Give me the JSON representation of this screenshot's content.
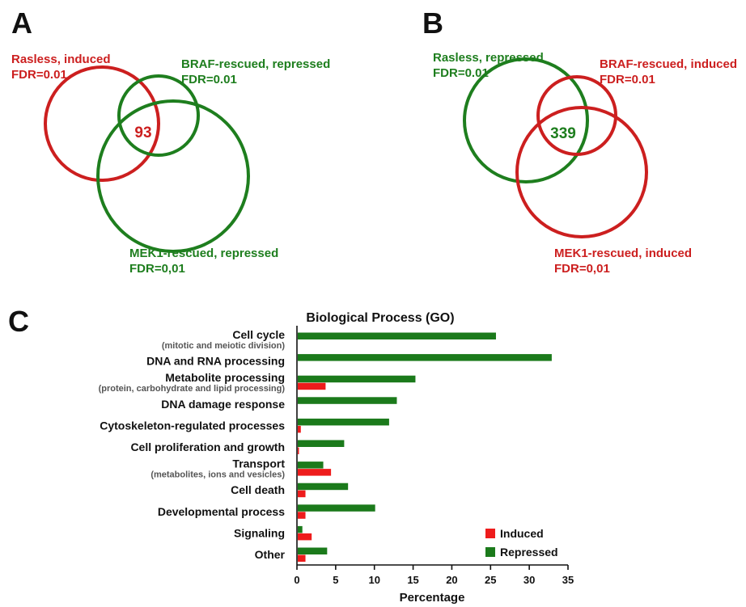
{
  "colors": {
    "red": "#cc1f1f",
    "green": "#1e7e1e",
    "bar_red": "#ee1c1c",
    "bar_green": "#1b7a1b"
  },
  "panel_a": {
    "letter": "A",
    "sets": [
      {
        "line1": "Rasless, induced",
        "line2": "FDR=0.01",
        "color": "red"
      },
      {
        "line1": "BRAF-rescued, repressed",
        "line2": "FDR=0.01",
        "color": "green"
      },
      {
        "line1": "MEK1-rescued, repressed",
        "line2": "FDR=0,01",
        "color": "green"
      }
    ],
    "intersection": "93"
  },
  "panel_b": {
    "letter": "B",
    "sets": [
      {
        "line1": "Rasless, repressed",
        "line2": "FDR=0.01",
        "color": "green"
      },
      {
        "line1": "BRAF-rescued, induced",
        "line2": "FDR=0.01",
        "color": "red"
      },
      {
        "line1": "MEK1-rescued, induced",
        "line2": "FDR=0,01",
        "color": "red"
      }
    ],
    "intersection": "339"
  },
  "panel_c_letter": "C",
  "chart_data": {
    "type": "bar",
    "orientation": "horizontal",
    "title": "Biological Process (GO)",
    "xlabel": "Percentage",
    "xlim": [
      0,
      35
    ],
    "xticks": [
      0,
      5,
      10,
      15,
      20,
      25,
      30,
      35
    ],
    "categories": [
      {
        "label": "Cell cycle",
        "sub": "(mitotic and meiotic division)"
      },
      {
        "label": "DNA and RNA processing",
        "sub": ""
      },
      {
        "label": "Metabolite processing",
        "sub": "(protein, carbohydrate and lipid processing)"
      },
      {
        "label": "DNA damage response",
        "sub": ""
      },
      {
        "label": "Cytoskeleton-regulated processes",
        "sub": ""
      },
      {
        "label": "Cell proliferation and growth",
        "sub": ""
      },
      {
        "label": "Transport",
        "sub": "(metabolites, ions and vesicles)"
      },
      {
        "label": "Cell death",
        "sub": ""
      },
      {
        "label": "Developmental process",
        "sub": ""
      },
      {
        "label": "Signaling",
        "sub": ""
      },
      {
        "label": "Other",
        "sub": ""
      }
    ],
    "series": [
      {
        "name": "Repressed",
        "color": "#1b7a1b",
        "values": [
          25.7,
          32.9,
          15.3,
          12.9,
          11.9,
          6.1,
          3.4,
          6.6,
          10.1,
          0.7,
          3.9
        ]
      },
      {
        "name": "Induced",
        "color": "#ee1c1c",
        "values": [
          0,
          0,
          3.7,
          0,
          0.5,
          0.2,
          4.4,
          1.1,
          1.1,
          1.9,
          1.1
        ]
      }
    ],
    "legend": {
      "position": "bottom-right",
      "order": [
        "Induced",
        "Repressed"
      ]
    }
  }
}
